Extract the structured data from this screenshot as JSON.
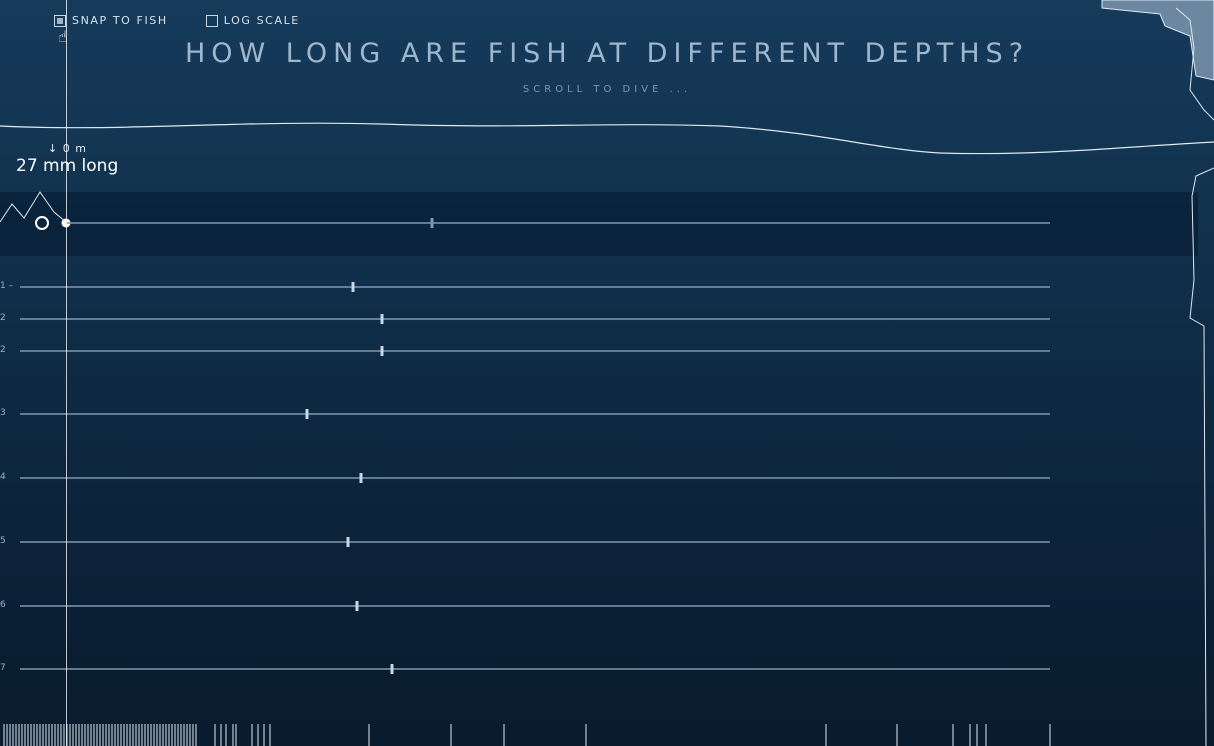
{
  "controls": {
    "snap_label": "SNAP TO FISH",
    "snap_checked": true,
    "log_label": "LOG SCALE",
    "log_checked": false
  },
  "header": {
    "title": "HOW LONG ARE FISH AT DIFFERENT DEPTHS?",
    "subtitle": "SCROLL TO DIVE ..."
  },
  "readout": {
    "depth": "↓ 0 m",
    "length": "27 mm long"
  },
  "icons": [
    "cursor-hand-icon",
    "fish-marker-icon"
  ],
  "colors": {
    "background_top": "#163a5a",
    "background_bottom": "#091b2e",
    "guide_line": "#ffffff",
    "row_line": "#7f98b0"
  },
  "chart_data": {
    "type": "scatter",
    "rows": [
      {
        "label": "",
        "value": 432,
        "highlight": true
      },
      {
        "label": "1 –",
        "value": 353
      },
      {
        "label": "2",
        "value": 382
      },
      {
        "label": "2",
        "value": 382
      },
      {
        "label": "3",
        "value": 307
      },
      {
        "label": "4",
        "value": 361
      },
      {
        "label": "5",
        "value": 348
      },
      {
        "label": "6",
        "value": 357
      },
      {
        "label": "7",
        "value": 392
      }
    ]
  }
}
